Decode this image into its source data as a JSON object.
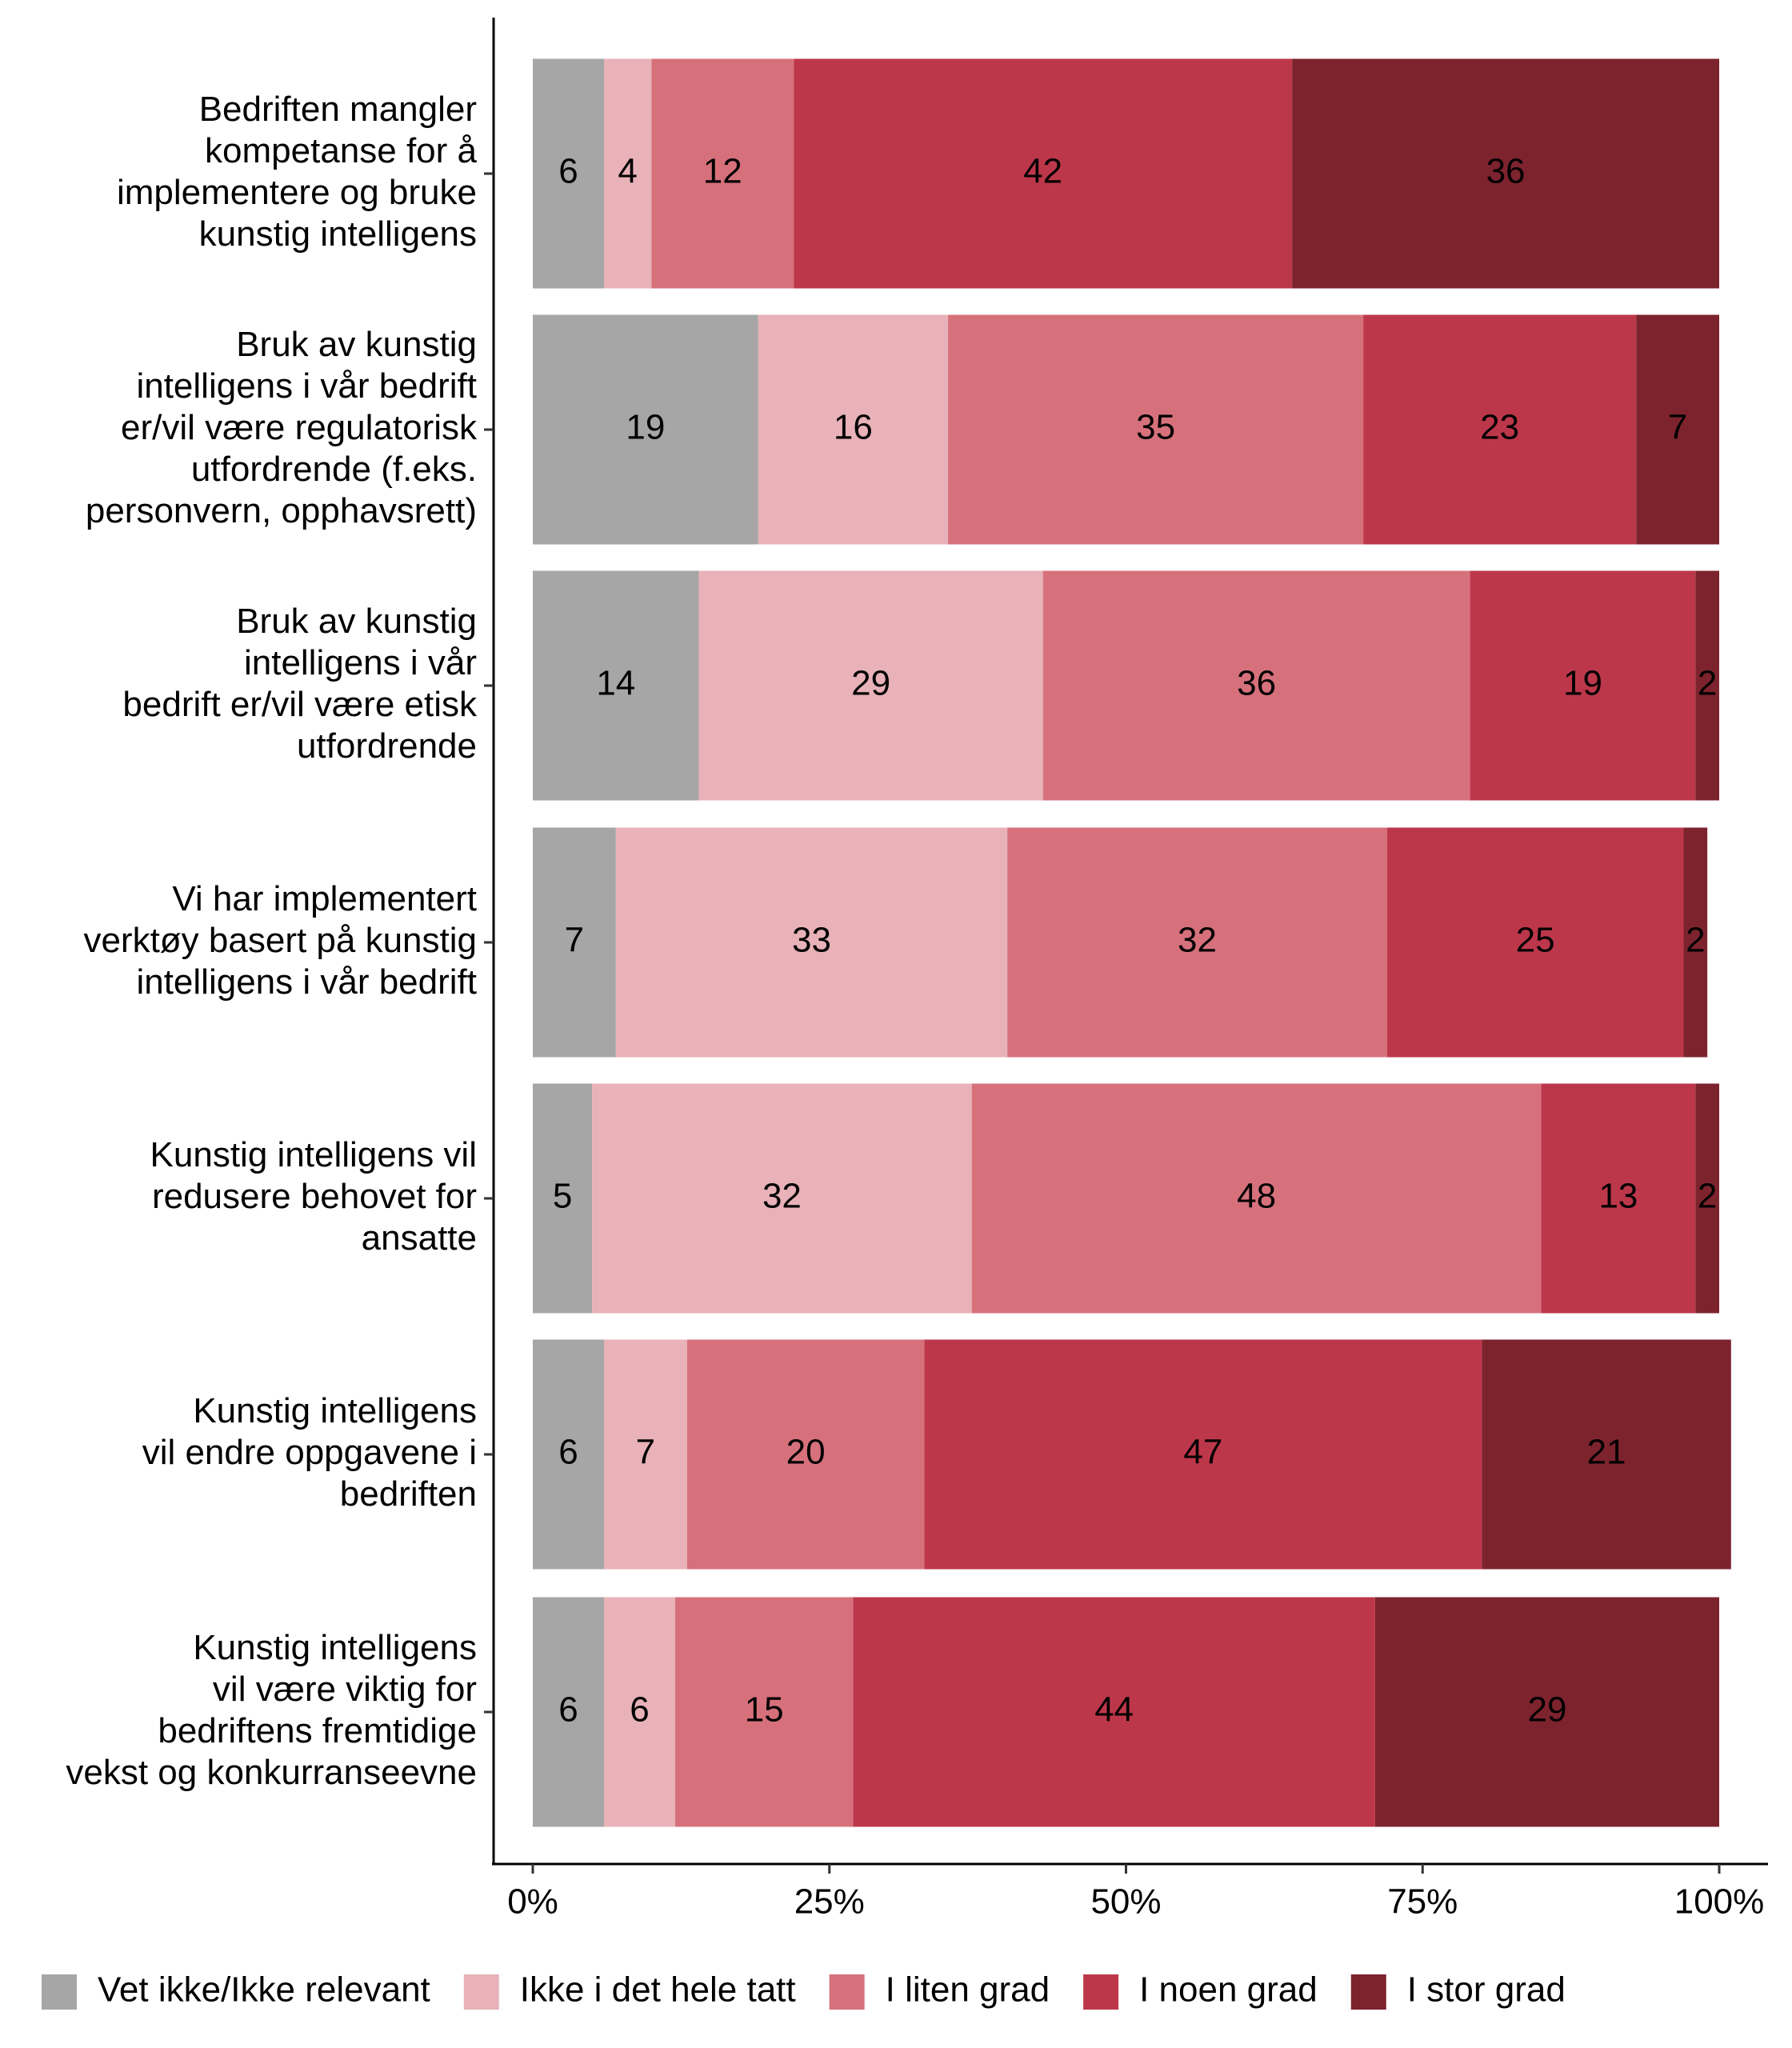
{
  "chart_data": {
    "type": "stacked_bar_horizontal",
    "categories": [
      "Bedriften mangler\nkompetanse for å\nimplementere og bruke\nkunstig intelligens",
      "Bruk av kunstig\nintelligens i vår bedrift\ner/vil være regulatorisk\nutfordrende (f.eks.\npersonvern, opphavsrett)",
      "Bruk av kunstig\nintelligens i vår\nbedrift er/vil være etisk\nutfordrende",
      "Vi har implementert\nverktøy basert på kunstig\nintelligens i vår bedrift",
      "Kunstig intelligens vil\nredusere behovet for\nansatte",
      "Kunstig intelligens\nvil endre oppgavene i\nbedriften",
      "Kunstig intelligens\nvil være viktig for\nbedriftens fremtidige\nvekst og konkurranseevne"
    ],
    "series": [
      {
        "name": "Vet ikke/Ikke relevant",
        "color": "#a6a6a6",
        "label_color": "#000000",
        "values": [
          6,
          19,
          14,
          7,
          5,
          6,
          6
        ]
      },
      {
        "name": "Ikke i det hele tatt",
        "color": "#e8b2b8",
        "label_color": "#000000",
        "values": [
          4,
          16,
          29,
          33,
          32,
          7,
          6
        ]
      },
      {
        "name": "I liten grad",
        "color": "#d6717c",
        "label_color": "#000000",
        "values": [
          12,
          35,
          36,
          32,
          48,
          20,
          15
        ]
      },
      {
        "name": "I noen grad",
        "color": "#bd374a",
        "label_color": "#ffffff",
        "values": [
          42,
          23,
          19,
          25,
          13,
          47,
          44
        ]
      },
      {
        "name": "I stor grad",
        "color": "#7d232e",
        "label_color": "#ffffff",
        "values": [
          36,
          7,
          2,
          2,
          2,
          21,
          29
        ]
      }
    ],
    "xlim": [
      0,
      100
    ],
    "xticks": [
      {
        "value": 0,
        "label": "0%"
      },
      {
        "value": 25,
        "label": "25%"
      },
      {
        "value": 50,
        "label": "50%"
      },
      {
        "value": 75,
        "label": "75%"
      },
      {
        "value": 100,
        "label": "100%"
      }
    ],
    "legend": "bottom"
  }
}
